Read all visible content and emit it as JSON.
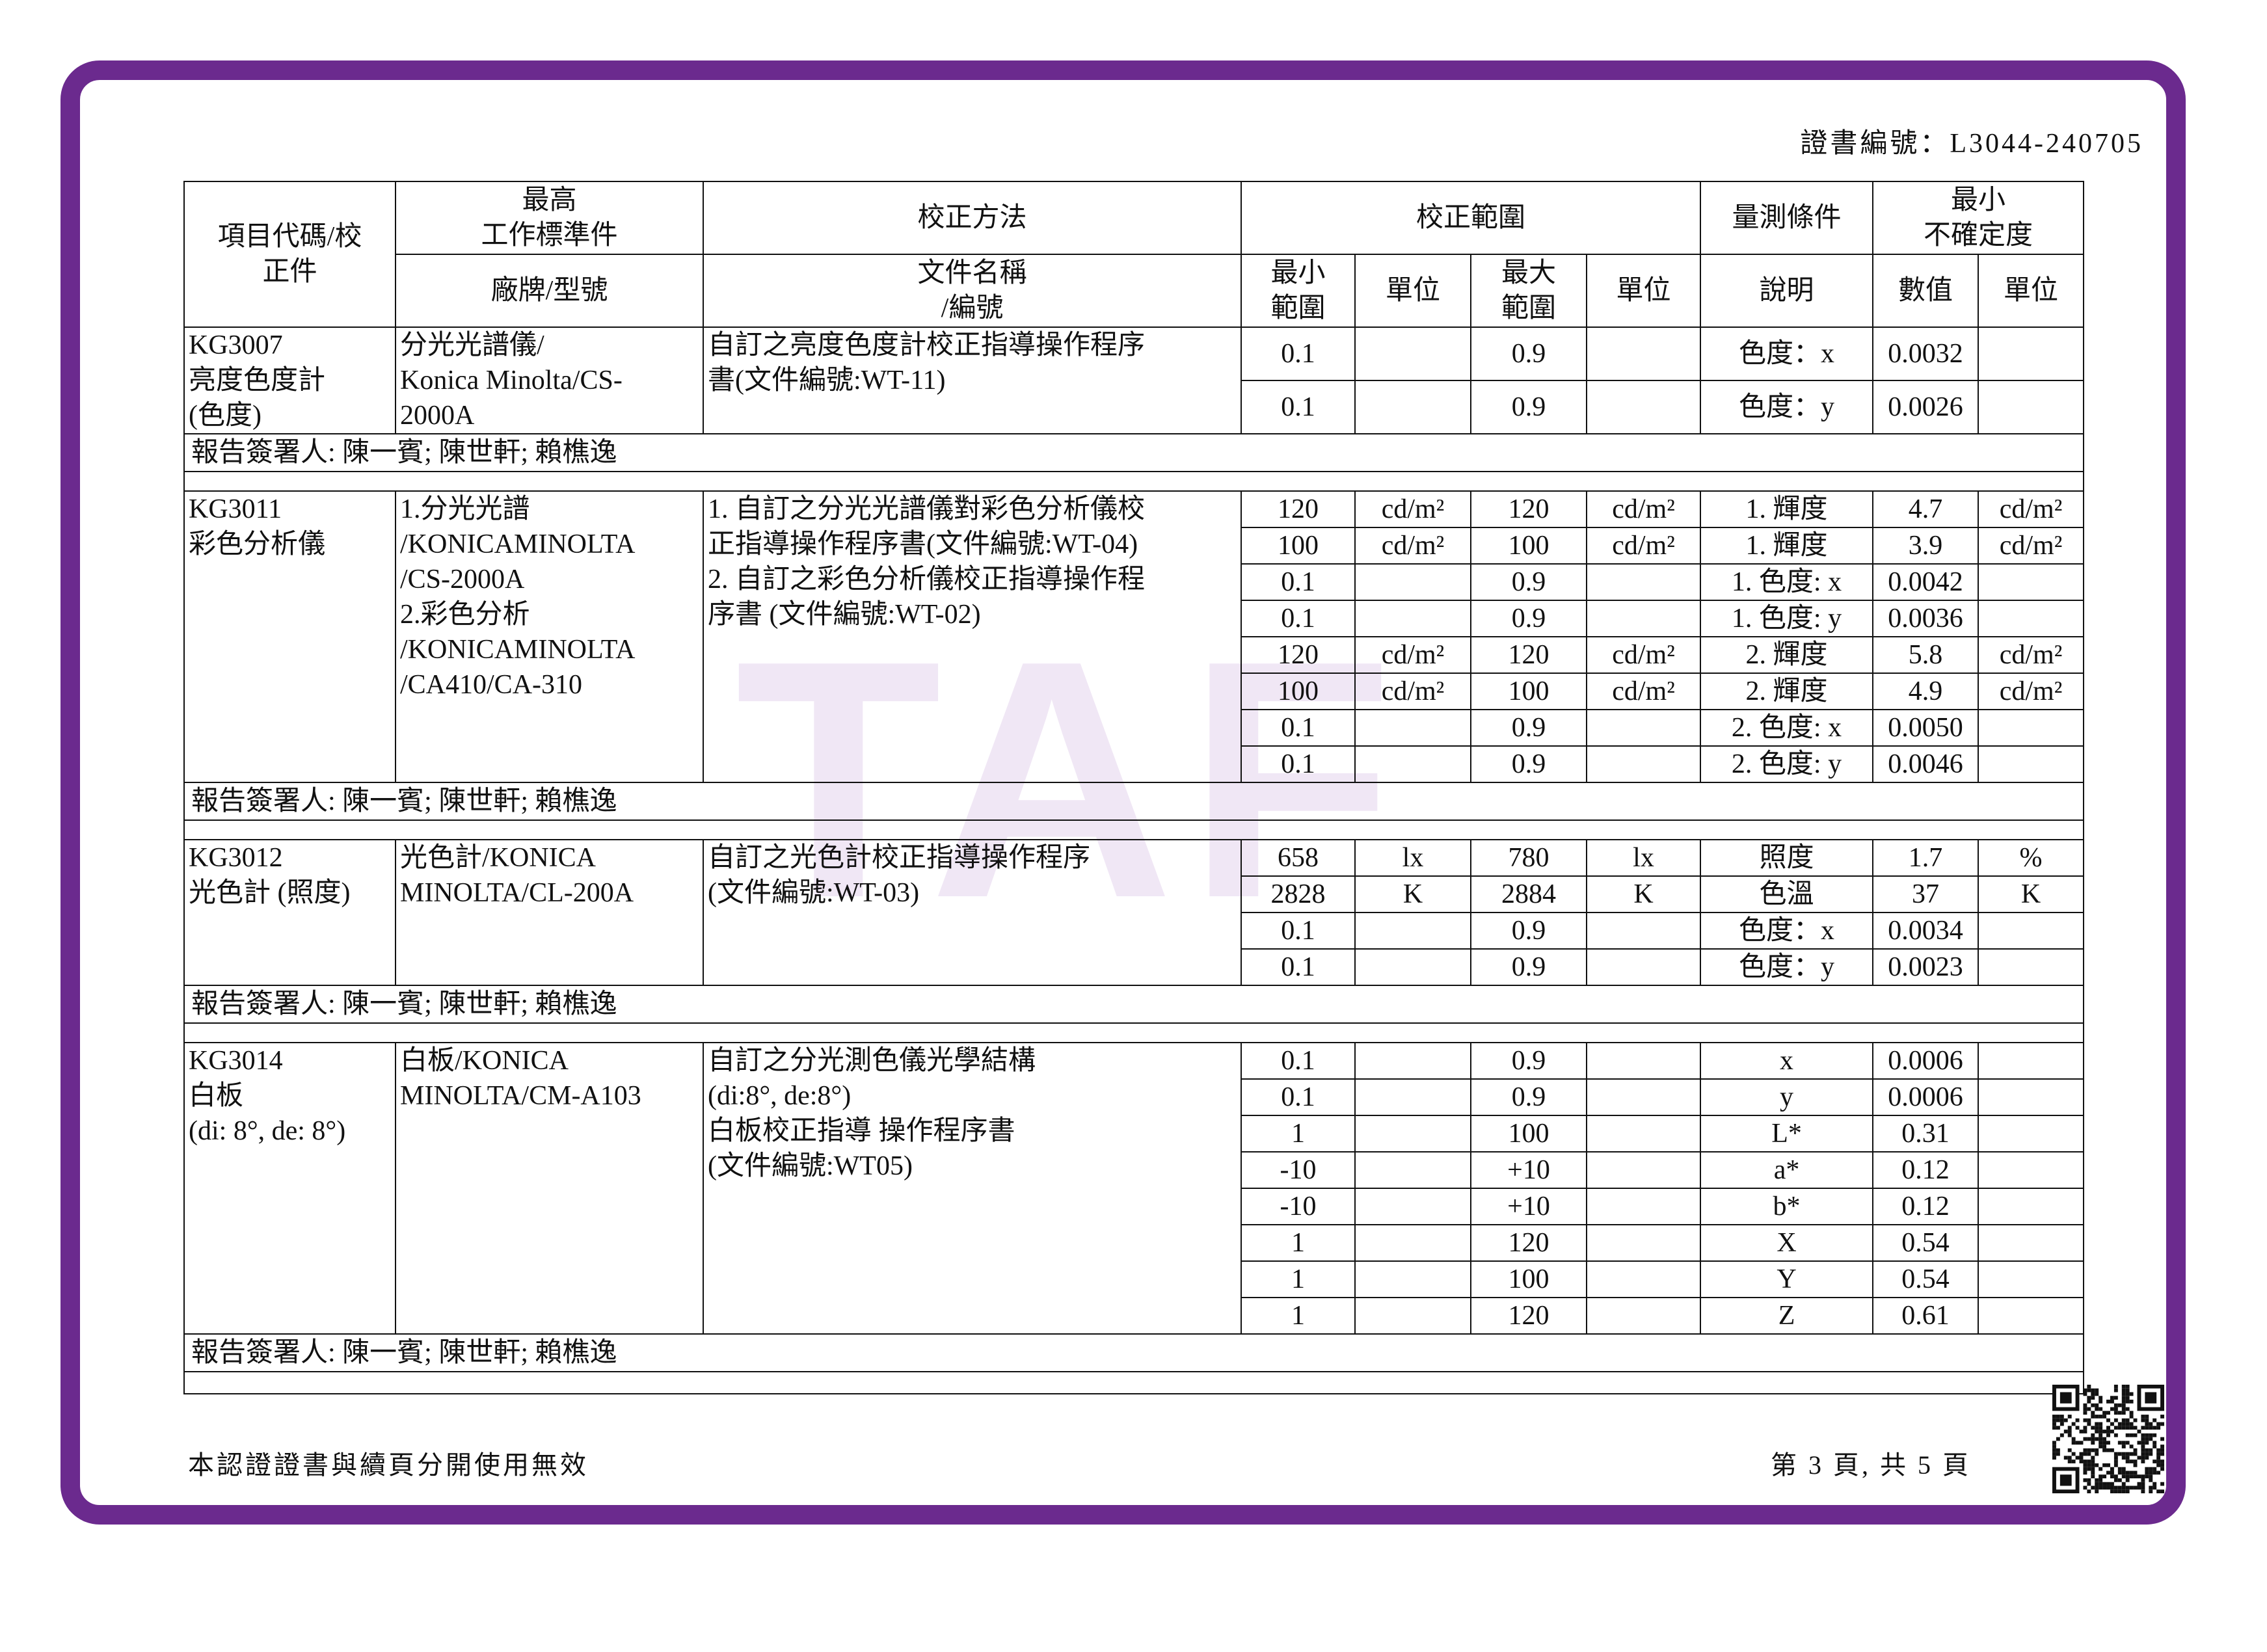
{
  "cert_no": "證書編號：L3044-240705",
  "watermark": "TAF",
  "header": {
    "item": [
      "項目代碼/校",
      "正件"
    ],
    "standard": [
      "最高",
      "工作標準件"
    ],
    "brand": "廠牌/型號",
    "method": "校正方法",
    "doc": [
      "文件名稱",
      "/編號"
    ],
    "range": "校正範圍",
    "range_min": [
      "最小",
      "範圍"
    ],
    "range_min_unit": "單位",
    "range_max": [
      "最大",
      "範圍"
    ],
    "range_max_unit": "單位",
    "condition": "量測條件",
    "condition_desc": "說明",
    "uncertainty": [
      "最小",
      "不確定度"
    ],
    "unc_value": "數值",
    "unc_unit": "單位"
  },
  "groups": [
    {
      "code": [
        "KG3007",
        "亮度色度計",
        "(色度)"
      ],
      "equipment": [
        "分光光譜儀/",
        "Konica Minolta/CS-",
        "2000A"
      ],
      "method": [
        "自訂之亮度色度計校正指導操作程序",
        "書(文件編號:WT-11)"
      ],
      "rows": [
        [
          "0.1",
          null,
          "0.9",
          null,
          "色度：x",
          "0.0032",
          null
        ],
        [
          "0.1",
          null,
          "0.9",
          null,
          "色度：y",
          "0.0026",
          null
        ]
      ],
      "signer": "報告簽署人: 陳一賓; 陳世軒; 賴樵逸"
    },
    {
      "code": [
        "KG3011",
        "彩色分析儀"
      ],
      "equipment": [
        "1.分光光譜",
        "/KONICAMINOLTA",
        "/CS-2000A",
        "2.彩色分析",
        "/KONICAMINOLTA",
        "/CA410/CA-310"
      ],
      "method": [
        "1. 自訂之分光光譜儀對彩色分析儀校",
        "正指導操作程序書(文件編號:WT-04)",
        "2. 自訂之彩色分析儀校正指導操作程",
        "序書 (文件編號:WT-02)"
      ],
      "rows": [
        [
          "120",
          "cd/m²",
          "120",
          "cd/m²",
          "1. 輝度",
          "4.7",
          "cd/m²"
        ],
        [
          "100",
          "cd/m²",
          "100",
          "cd/m²",
          "1. 輝度",
          "3.9",
          "cd/m²"
        ],
        [
          "0.1",
          null,
          "0.9",
          null,
          "1. 色度: x",
          "0.0042",
          null
        ],
        [
          "0.1",
          null,
          "0.9",
          null,
          "1. 色度: y",
          "0.0036",
          null
        ],
        [
          "120",
          "cd/m²",
          "120",
          "cd/m²",
          "2. 輝度",
          "5.8",
          "cd/m²"
        ],
        [
          "100",
          "cd/m²",
          "100",
          "cd/m²",
          "2. 輝度",
          "4.9",
          "cd/m²"
        ],
        [
          "0.1",
          null,
          "0.9",
          null,
          "2. 色度: x",
          "0.0050",
          null
        ],
        [
          "0.1",
          null,
          "0.9",
          null,
          "2. 色度: y",
          "0.0046",
          null
        ]
      ],
      "signer": "報告簽署人: 陳一賓; 陳世軒; 賴樵逸"
    },
    {
      "code": [
        "KG3012",
        "光色計 (照度)"
      ],
      "equipment": [
        "光色計/KONICA",
        "MINOLTA/CL-200A"
      ],
      "method": [
        "自訂之光色計校正指導操作程序",
        "(文件編號:WT-03)"
      ],
      "rows": [
        [
          "658",
          "lx",
          "780",
          "lx",
          "照度",
          "1.7",
          "%"
        ],
        [
          "2828",
          "K",
          "2884",
          "K",
          "色溫",
          "37",
          "K"
        ],
        [
          "0.1",
          null,
          "0.9",
          null,
          "色度：x",
          "0.0034",
          null
        ],
        [
          "0.1",
          null,
          "0.9",
          null,
          "色度：y",
          "0.0023",
          null
        ]
      ],
      "signer": "報告簽署人: 陳一賓; 陳世軒; 賴樵逸"
    },
    {
      "code": [
        "KG3014",
        "白板",
        "(di: 8°, de: 8°)"
      ],
      "equipment": [
        "白板/KONICA",
        "MINOLTA/CM-A103"
      ],
      "method": [
        "自訂之分光測色儀光學結構",
        "(di:8°, de:8°)",
        "白板校正指導 操作程序書",
        "(文件編號:WT05)"
      ],
      "rows": [
        [
          "0.1",
          null,
          "0.9",
          null,
          "x",
          "0.0006",
          null
        ],
        [
          "0.1",
          null,
          "0.9",
          null,
          "y",
          "0.0006",
          null
        ],
        [
          "1",
          null,
          "100",
          null,
          "L*",
          "0.31",
          null
        ],
        [
          "-10",
          null,
          "+10",
          null,
          "a*",
          "0.12",
          null
        ],
        [
          "-10",
          null,
          "+10",
          null,
          "b*",
          "0.12",
          null
        ],
        [
          "1",
          null,
          "120",
          null,
          "X",
          "0.54",
          null
        ],
        [
          "1",
          null,
          "100",
          null,
          "Y",
          "0.54",
          null
        ],
        [
          "1",
          null,
          "120",
          null,
          "Z",
          "0.61",
          null
        ]
      ],
      "signer": "報告簽署人: 陳一賓; 陳世軒; 賴樵逸"
    }
  ],
  "footer": {
    "note": "本認證證書與續頁分開使用無效",
    "page": "第 3 頁, 共 5 頁"
  }
}
